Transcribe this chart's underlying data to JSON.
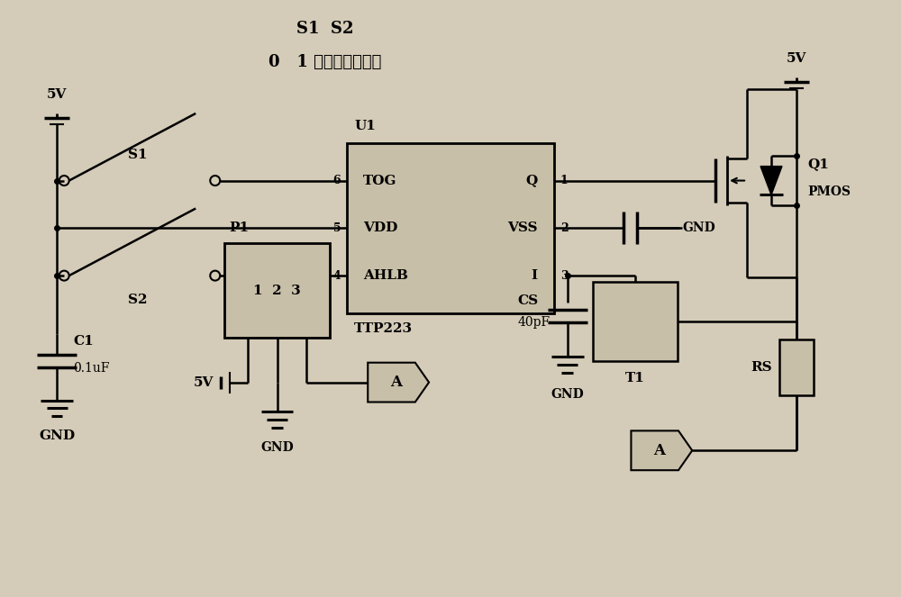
{
  "bg_color": "#d4cbb8",
  "line_color": "#000000",
  "box_fill": "#c8bfa8",
  "title_line1": "S1  S2",
  "title_line2": "0   1 点动低电平有效",
  "chip_label": "U1",
  "chip_name": "TTP223",
  "chip_left_pins": [
    "TOG",
    "VDD",
    "AHLB"
  ],
  "chip_right_pins": [
    "Q",
    "VSS",
    "I"
  ],
  "chip_left_nums": [
    "6",
    "5",
    "4"
  ],
  "chip_right_nums": [
    "1",
    "2",
    "3"
  ]
}
